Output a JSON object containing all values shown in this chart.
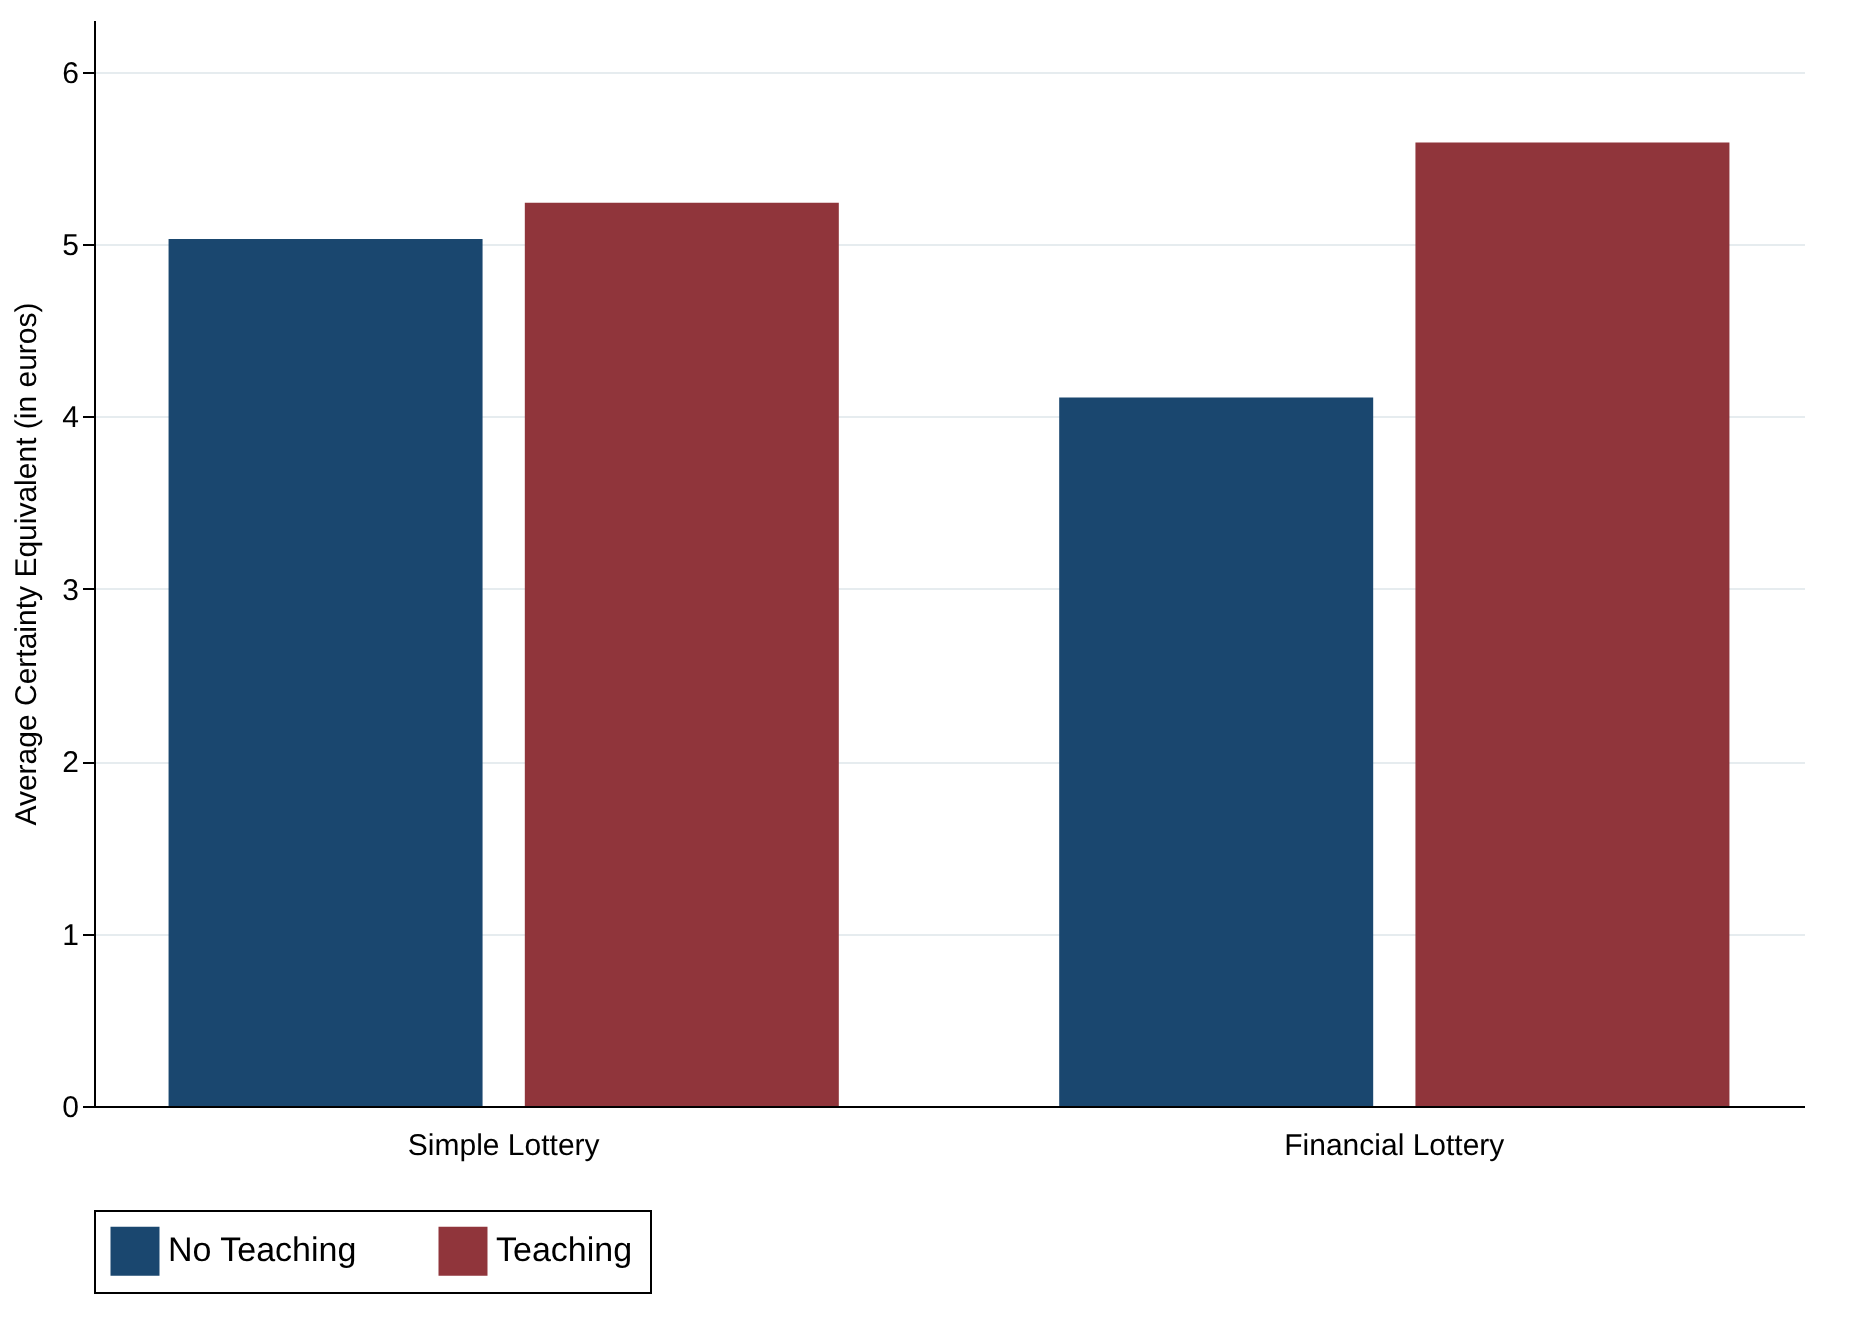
{
  "chart_data": {
    "type": "bar",
    "ylabel": "Average Certainty Equivalent (in euros)",
    "categories": [
      "Simple Lottery",
      "Financial Lottery"
    ],
    "series": [
      {
        "name": "No Teaching",
        "color": "#1a476f",
        "values": [
          5.03,
          4.11
        ]
      },
      {
        "name": "Teaching",
        "color": "#90353b",
        "values": [
          5.24,
          5.59
        ]
      }
    ],
    "ylim": [
      0,
      6.3
    ],
    "yticks": [
      0,
      1,
      2,
      3,
      4,
      5,
      6
    ],
    "grid": "y",
    "legend": "bottom"
  }
}
